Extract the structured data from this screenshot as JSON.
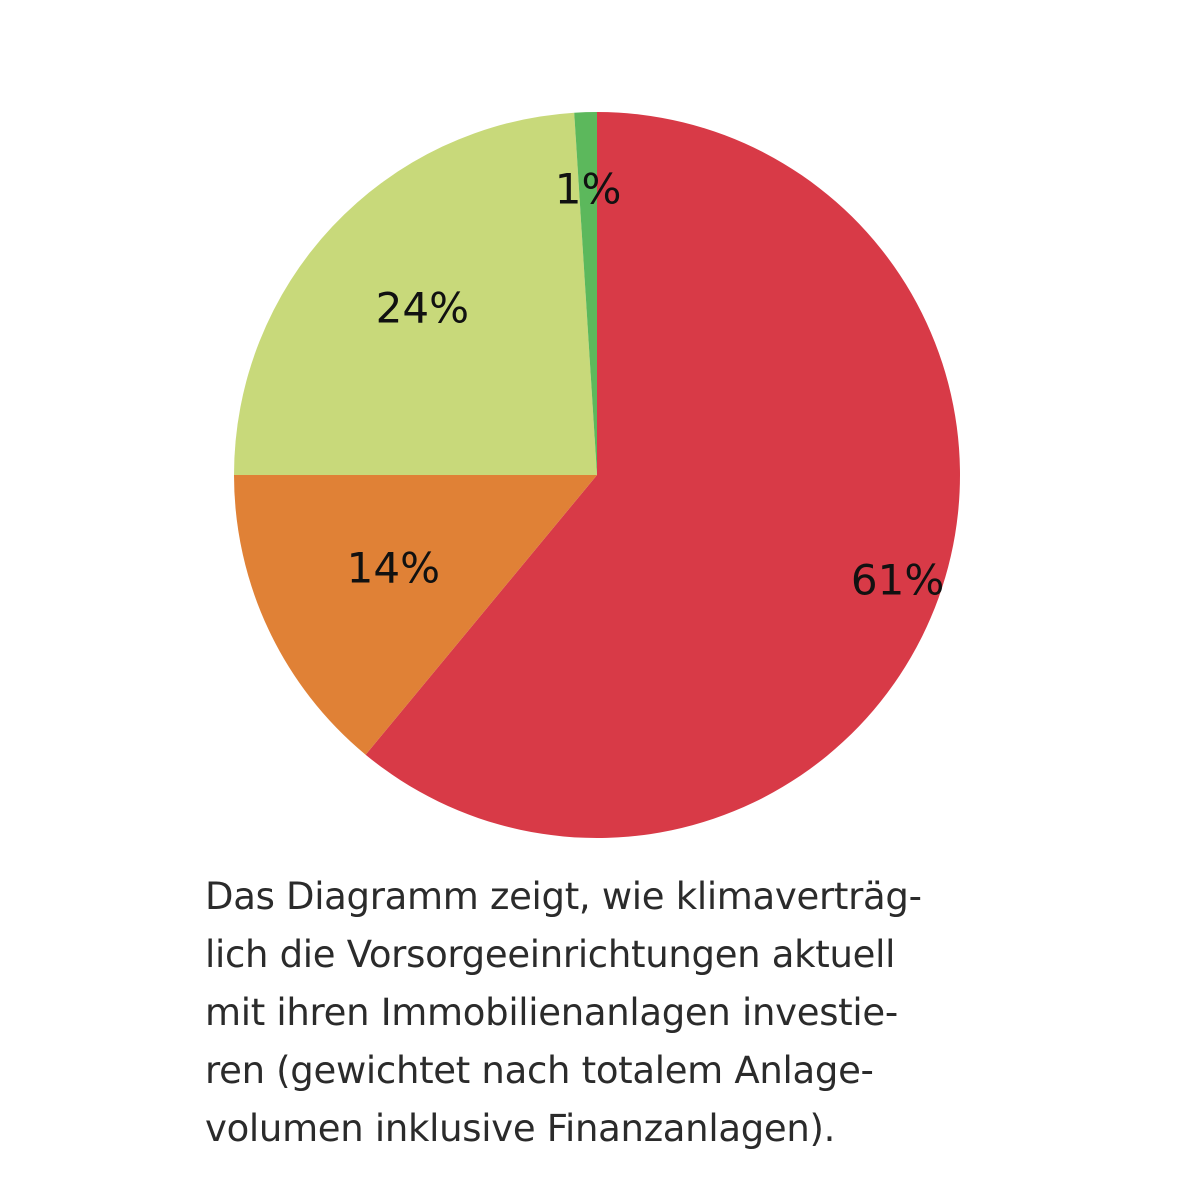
{
  "chart_data": {
    "type": "pie",
    "values": [
      61,
      14,
      24,
      1
    ],
    "labels": [
      "61%",
      "14%",
      "24%",
      "1%"
    ],
    "colors": [
      "#d83a47",
      "#e08136",
      "#c8d97a",
      "#5cb85c"
    ],
    "start_angle_deg": 0,
    "direction": "clockwise",
    "legend": "none"
  },
  "caption": {
    "lines": [
      "Das Diagramm zeigt, wie klimaverträg-",
      "lich die Vorsorgeeinrichtungen aktuell",
      "mit ihren Immobilienanlagen investie-",
      "ren (gewichtet nach totalem Anlage-",
      "volumen inklusive Finanzanlagen)."
    ]
  }
}
